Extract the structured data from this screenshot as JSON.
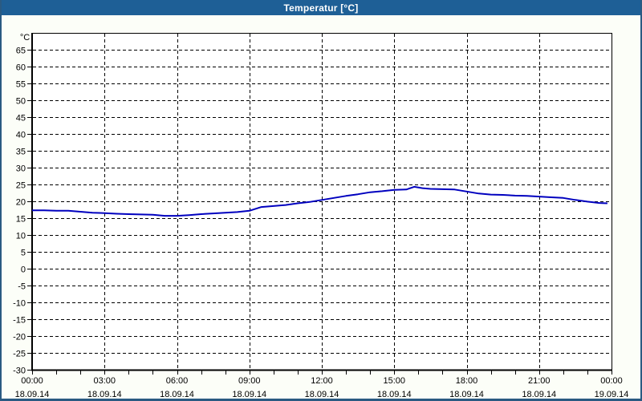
{
  "window": {
    "title": "Temperatur [°C]"
  },
  "colors": {
    "titlebar_bg": "#1E5F96",
    "titlebar_text": "#FFFFFF",
    "window_border": "#2A5A82",
    "window_bg": "#FCFEF8",
    "plot_bg": "#FFFFFF",
    "grid": "#000000",
    "series_line": "#0000BF"
  },
  "chart_data": {
    "type": "line",
    "title": "Temperatur [°C]",
    "y_unit_label": "°C",
    "ylim": [
      -30,
      70
    ],
    "y_ticks": [
      65,
      60,
      55,
      50,
      45,
      40,
      35,
      30,
      25,
      20,
      15,
      10,
      5,
      0,
      -5,
      -10,
      -15,
      -20,
      -25,
      -30
    ],
    "x_hours_range": [
      0,
      24
    ],
    "x_minor_tick_every_hours": 1,
    "x_major_ticks": [
      {
        "hour": 0,
        "time": "00:00",
        "date": "18.09.14"
      },
      {
        "hour": 3,
        "time": "03:00",
        "date": "18.09.14"
      },
      {
        "hour": 6,
        "time": "06:00",
        "date": "18.09.14"
      },
      {
        "hour": 9,
        "time": "09:00",
        "date": "18.09.14"
      },
      {
        "hour": 12,
        "time": "12:00",
        "date": "18.09.14"
      },
      {
        "hour": 15,
        "time": "15:00",
        "date": "18.09.14"
      },
      {
        "hour": 18,
        "time": "18:00",
        "date": "18.09.14"
      },
      {
        "hour": 21,
        "time": "21:00",
        "date": "18.09.14"
      },
      {
        "hour": 24,
        "time": "00:00",
        "date": "19.09.14"
      }
    ],
    "grid": "dashed",
    "legend": "none",
    "series": [
      {
        "name": "Temperatur",
        "color": "#0000BF",
        "x_hours": [
          0,
          0.5,
          1,
          1.5,
          2,
          2.5,
          3,
          3.5,
          4,
          4.5,
          5,
          5.5,
          6,
          6.5,
          7,
          7.5,
          8,
          8.5,
          9,
          9.5,
          10,
          10.5,
          11,
          11.5,
          12,
          12.5,
          13,
          13.5,
          14,
          14.5,
          15,
          15.5,
          15.83,
          16.17,
          16.5,
          17,
          17.5,
          18,
          18.5,
          19,
          19.5,
          20,
          20.5,
          21,
          21.5,
          22,
          22.5,
          23,
          23.5,
          23.83
        ],
        "values": [
          17.3,
          17.3,
          17.2,
          17.2,
          16.9,
          16.6,
          16.5,
          16.3,
          16.2,
          16.1,
          16.0,
          15.7,
          15.7,
          15.9,
          16.2,
          16.4,
          16.6,
          16.8,
          17.2,
          18.3,
          18.6,
          18.9,
          19.4,
          19.8,
          20.4,
          21.0,
          21.6,
          22.1,
          22.7,
          23.0,
          23.4,
          23.5,
          24.3,
          23.9,
          23.7,
          23.6,
          23.5,
          22.9,
          22.3,
          22.0,
          21.9,
          21.7,
          21.6,
          21.4,
          21.2,
          21.0,
          20.4,
          19.9,
          19.5,
          19.4
        ]
      }
    ]
  }
}
